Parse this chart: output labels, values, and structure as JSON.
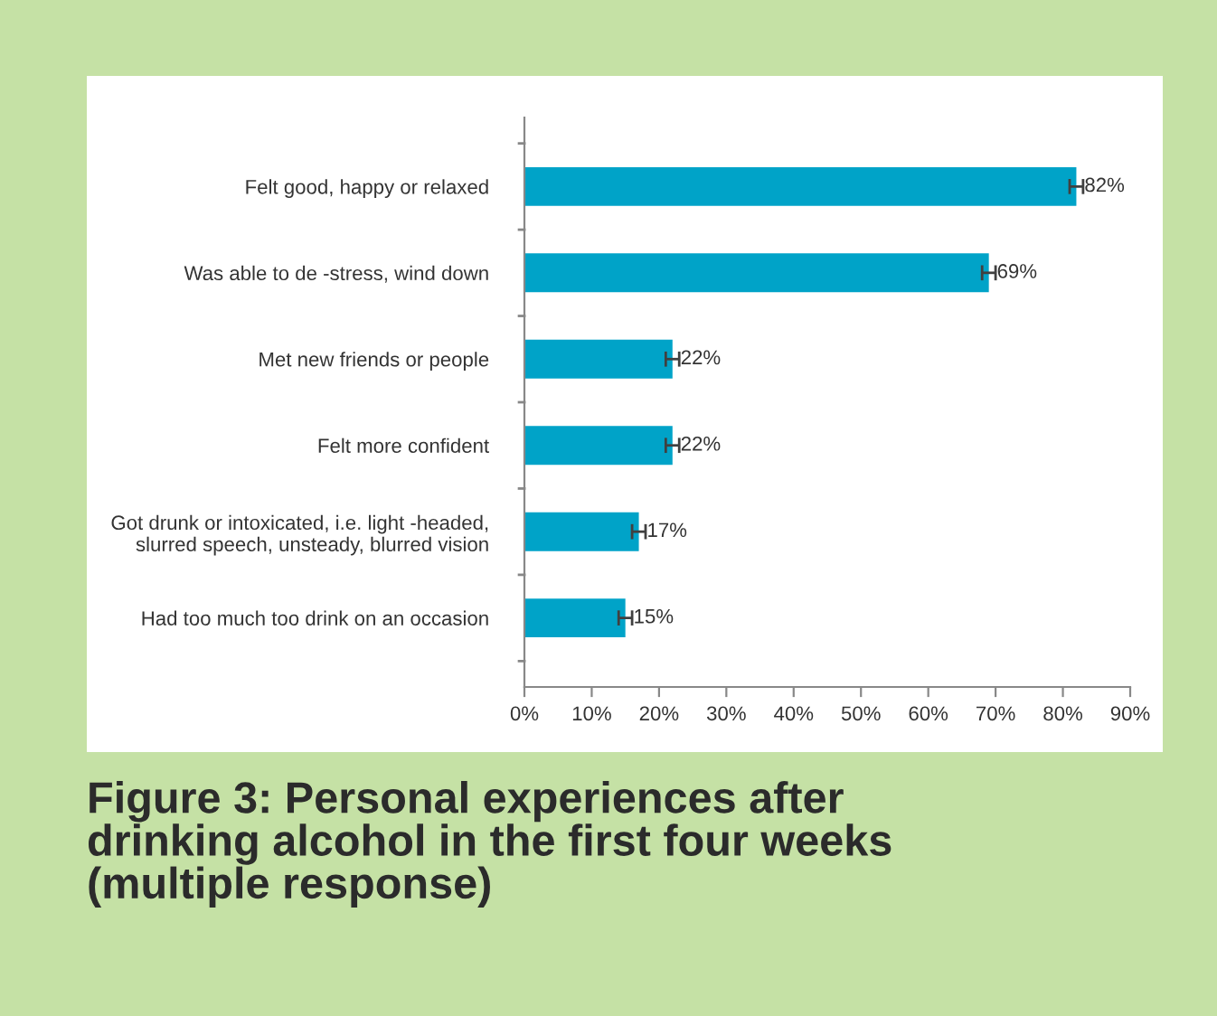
{
  "chart_data": {
    "type": "bar",
    "orientation": "horizontal",
    "title": "Figure 3: Personal experiences after\ndrinking alcohol in the first four weeks\n(multiple response)",
    "categories": [
      "Felt good, happy or relaxed",
      "Was able to de -stress, wind down",
      "Met new friends or people",
      "Felt more confident",
      "Got drunk or intoxicated, i.e. light -headed,\nslurred speech, unsteady, blurred vision",
      "Had too much too drink on an occasion"
    ],
    "values": [
      82,
      69,
      22,
      22,
      17,
      15
    ],
    "errors": [
      1,
      1,
      1,
      1,
      1,
      1
    ],
    "value_labels": [
      "82%",
      "69%",
      "22%",
      "22%",
      "17%",
      "15%"
    ],
    "color": "#00a3c8",
    "xlim": [
      0,
      90
    ],
    "xticks": [
      {
        "value": 0,
        "label": "0%"
      },
      {
        "value": 10,
        "label": "10%"
      },
      {
        "value": 20,
        "label": "20%"
      },
      {
        "value": 30,
        "label": "30%"
      },
      {
        "value": 40,
        "label": "40%"
      },
      {
        "value": 50,
        "label": "50%"
      },
      {
        "value": 60,
        "label": "60%"
      },
      {
        "value": 70,
        "label": "70%"
      },
      {
        "value": 80,
        "label": "80%"
      },
      {
        "value": 90,
        "label": "90%"
      }
    ],
    "grid": false
  }
}
